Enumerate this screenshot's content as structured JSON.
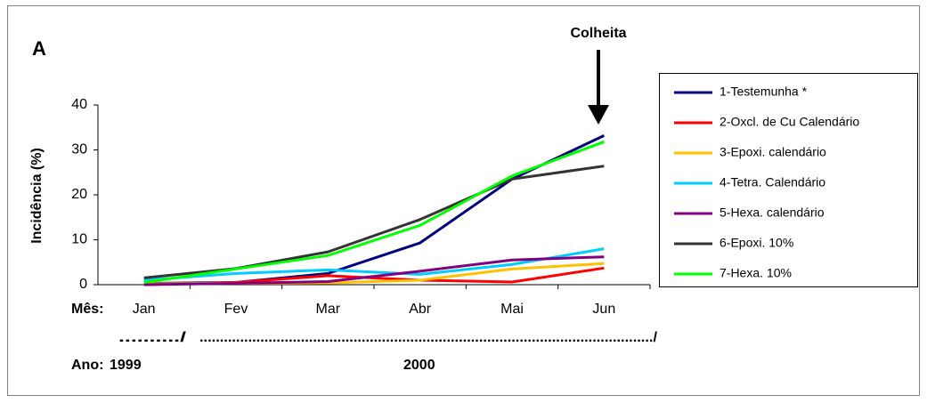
{
  "chart_data": {
    "type": "line",
    "panel_label": "A",
    "annotation": "Colheita",
    "ylabel": "Incidência (%)",
    "x_axis_label": "Mês:",
    "year_axis_label": "Ano:",
    "years": [
      "1999",
      "2000"
    ],
    "period_marks": [
      "........../",
      "................................................................................................................/"
    ],
    "categories": [
      "Jan",
      "Fev",
      "Mar",
      "Abr",
      "Mai",
      "Jun"
    ],
    "ylim": [
      0,
      40
    ],
    "yticks": [
      0,
      10,
      20,
      30,
      40
    ],
    "grid": false,
    "legend": "right",
    "series": [
      {
        "name": "1-Testemunha *",
        "color": "#000080",
        "values": [
          0.3,
          0.5,
          2.5,
          9.3,
          23.5,
          33.2
        ]
      },
      {
        "name": "2-Oxcl. de Cu Calendário",
        "color": "#ff0000",
        "values": [
          0,
          0.5,
          2,
          1,
          0.6,
          3.7
        ]
      },
      {
        "name": "3-Epoxi. calendário",
        "color": "#ffc000",
        "values": [
          0.2,
          0.3,
          0.4,
          1,
          3.5,
          4.7
        ]
      },
      {
        "name": "4-Tetra. Calendário",
        "color": "#00ccff",
        "values": [
          1,
          2.5,
          3.3,
          2.3,
          4.5,
          8
        ]
      },
      {
        "name": "5-Hexa. calendário",
        "color": "#800080",
        "values": [
          0,
          0.3,
          0.7,
          3,
          5.5,
          6.2
        ]
      },
      {
        "name": "6-Epoxi. 10%",
        "color": "#333333",
        "values": [
          1.5,
          3.6,
          7.3,
          14.5,
          23.5,
          26.4
        ]
      },
      {
        "name": "7-Hexa. 10%",
        "color": "#00ff00",
        "values": [
          0.5,
          3.5,
          6.5,
          13.2,
          24.2,
          31.8
        ]
      }
    ]
  }
}
